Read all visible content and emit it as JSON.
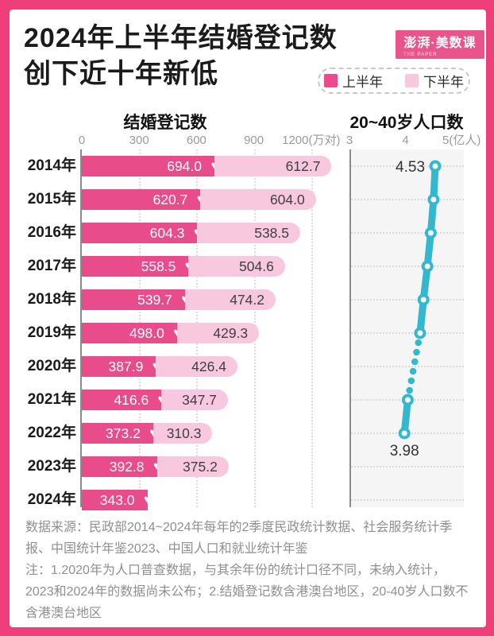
{
  "header": {
    "title_line1": "2024年上半年结婚登记数",
    "title_line2": "创下近十年新低",
    "logo": {
      "text": "澎湃·美数课",
      "sub": "THE PAPER"
    }
  },
  "legend": {
    "items": [
      {
        "label": "上半年",
        "color": "#e84c8b"
      },
      {
        "label": "下半年",
        "color": "#f8c8de"
      }
    ]
  },
  "charts": {
    "left_title": "结婚登记数",
    "right_title": "20~40岁人口数"
  },
  "chart_data": [
    {
      "type": "bar",
      "orientation": "horizontal",
      "stacked": true,
      "title": "结婚登记数",
      "unit": "万对",
      "categories": [
        "2014年",
        "2015年",
        "2016年",
        "2017年",
        "2018年",
        "2019年",
        "2020年",
        "2021年",
        "2022年",
        "2023年",
        "2024年"
      ],
      "x_ticks": [
        {
          "value": 0,
          "label": "0"
        },
        {
          "value": 300,
          "label": "300"
        },
        {
          "value": 600,
          "label": "600"
        },
        {
          "value": 900,
          "label": "900"
        },
        {
          "value": 1200,
          "label": "1200(万对)"
        }
      ],
      "xlim": [
        0,
        1360
      ],
      "series": [
        {
          "name": "上半年",
          "color": "#e84c8b",
          "values": [
            694.0,
            620.7,
            604.3,
            558.5,
            539.7,
            498.0,
            387.9,
            416.6,
            373.2,
            392.8,
            343.0
          ]
        },
        {
          "name": "下半年",
          "color": "#f8c8de",
          "values": [
            612.7,
            604.0,
            538.5,
            504.6,
            474.2,
            429.3,
            426.4,
            347.7,
            310.3,
            375.2,
            null
          ]
        }
      ],
      "marker_icon": "heart"
    },
    {
      "type": "line",
      "title": "20~40岁人口数",
      "unit": "亿人",
      "color": "#33b8ce",
      "categories": [
        "2014年",
        "2015年",
        "2016年",
        "2017年",
        "2018年",
        "2019年",
        "2020年",
        "2021年",
        "2022年",
        "2023年",
        "2024年"
      ],
      "x_ticks": [
        {
          "value": 3,
          "label": "3"
        },
        {
          "value": 4,
          "label": "4"
        },
        {
          "value": 5,
          "label": "5(亿人)"
        }
      ],
      "xlim": [
        3,
        5
      ],
      "values": [
        4.53,
        4.5,
        4.45,
        4.39,
        4.32,
        4.26,
        null,
        4.04,
        3.98,
        null,
        null
      ],
      "point_labels": [
        {
          "index": 0,
          "text": "4.53"
        },
        {
          "index": 8,
          "text": "3.98"
        }
      ],
      "notes": "Only 4.53 (2014) and 3.98 (2022) are labeled in the figure; intermediate values estimated from dot positions. 2020 shown as dotted gap (census data excluded); 2023 and 2024 not published."
    }
  ],
  "footer": {
    "source": "数据来源：民政部2014~2024年每年的2季度民政统计数据、社会服务统计季报、中国统计年鉴2023、中国人口和就业统计年鉴",
    "note": "注：1.2020年为人口普查数据，与其余年份的统计口径不同，未纳入统计，2023和2024年的数据尚未公布；2.结婚登记数含港澳台地区，20-40岁人口数不含港澳台地区"
  }
}
